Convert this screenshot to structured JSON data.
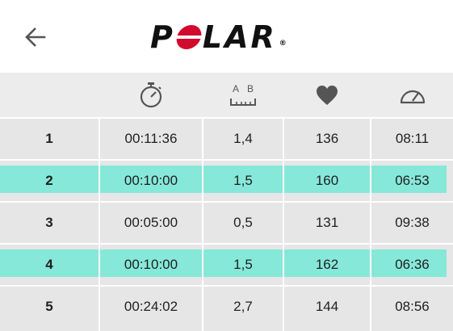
{
  "header": {
    "logo_text_before": "P",
    "logo_text_after": "LAR",
    "logo_mark": "®",
    "back_icon": "arrow-left-icon"
  },
  "table": {
    "columns": [
      {
        "key": "lap",
        "icon": ""
      },
      {
        "key": "time",
        "icon": "stopwatch-icon"
      },
      {
        "key": "distance",
        "icon": "distance-ab-icon",
        "icon_text": [
          "A",
          "B"
        ]
      },
      {
        "key": "heart_rate",
        "icon": "heart-icon"
      },
      {
        "key": "pace",
        "icon": "speedometer-icon"
      }
    ],
    "rows": [
      {
        "lap": "1",
        "time": "00:11:36",
        "distance": "1,4",
        "heart_rate": "136",
        "pace": "08:11",
        "highlighted": false
      },
      {
        "lap": "2",
        "time": "00:10:00",
        "distance": "1,5",
        "heart_rate": "160",
        "pace": "06:53",
        "highlighted": true
      },
      {
        "lap": "3",
        "time": "00:05:00",
        "distance": "0,5",
        "heart_rate": "131",
        "pace": "09:38",
        "highlighted": false
      },
      {
        "lap": "4",
        "time": "00:10:00",
        "distance": "1,5",
        "heart_rate": "162",
        "pace": "06:36",
        "highlighted": true
      },
      {
        "lap": "5",
        "time": "00:24:02",
        "distance": "2,7",
        "heart_rate": "144",
        "pace": "08:56",
        "highlighted": false
      }
    ]
  },
  "colors": {
    "highlight": "#86e8d9",
    "logo_red": "#d10a2e",
    "table_bg": "#e6e6e6",
    "icon_gray": "#555555"
  }
}
